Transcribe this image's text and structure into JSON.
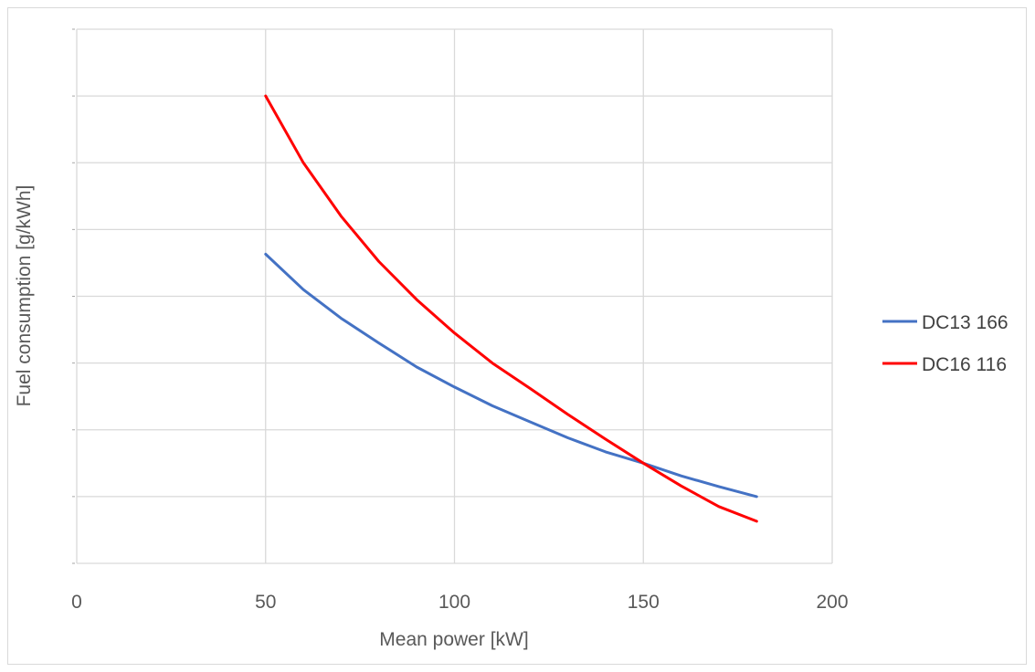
{
  "chart_data": {
    "type": "line",
    "title": "",
    "xlabel": "Mean power [kW]",
    "ylabel": "Fuel consumption [g/kWh]",
    "xlim": [
      0,
      200
    ],
    "ylim": [
      0,
      8
    ],
    "xticks": [
      "0",
      "50",
      "100",
      "150",
      "200"
    ],
    "grid": true,
    "legend_position": "right",
    "series": [
      {
        "name": "DC13 166",
        "color": "#4472c4",
        "x": [
          50,
          60,
          70,
          80,
          90,
          100,
          110,
          120,
          130,
          140,
          150,
          160,
          170,
          180
        ],
        "y": [
          4.63,
          4.1,
          3.67,
          3.3,
          2.94,
          2.64,
          2.36,
          2.12,
          1.88,
          1.67,
          1.5,
          1.31,
          1.15,
          1.0
        ]
      },
      {
        "name": "DC16 116",
        "color": "#ff0000",
        "x": [
          50,
          60,
          70,
          80,
          90,
          100,
          110,
          120,
          130,
          140,
          150,
          160,
          170,
          180
        ],
        "y": [
          7.0,
          6.0,
          5.2,
          4.52,
          3.95,
          3.45,
          3.0,
          2.62,
          2.23,
          1.86,
          1.5,
          1.16,
          0.85,
          0.63
        ]
      }
    ]
  }
}
